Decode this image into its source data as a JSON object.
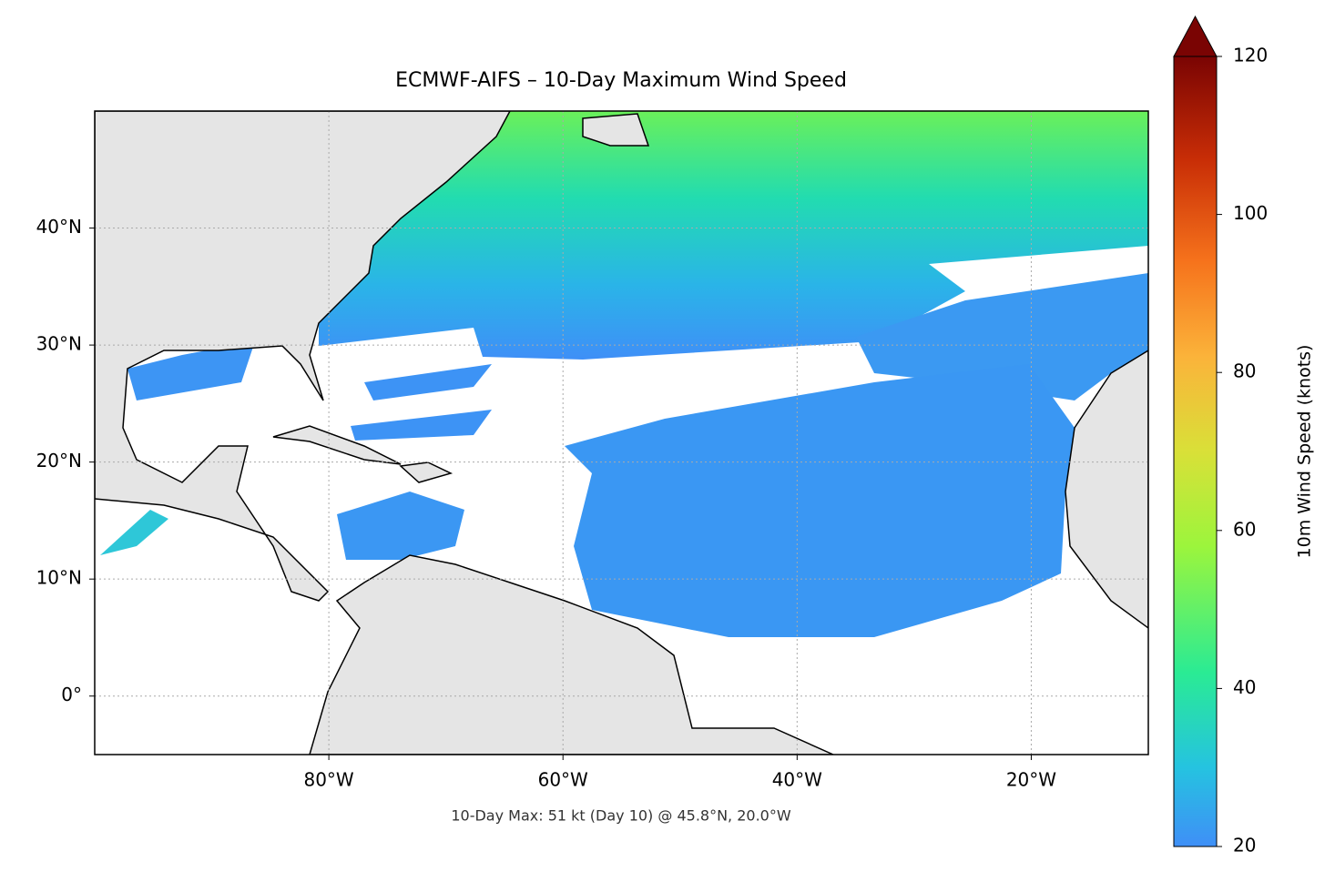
{
  "chart_data": {
    "type": "map",
    "title": "ECMWF-AIFS – 10-Day Maximum Wind Speed",
    "annotation": "10-Day Max: 51 kt (Day 10) @ 45.8°N, 20.0°W",
    "xlim": [
      -100,
      -10
    ],
    "ylim": [
      -5,
      50
    ],
    "xticks": [
      {
        "value": -80,
        "label": "80°W"
      },
      {
        "value": -60,
        "label": "60°W"
      },
      {
        "value": -40,
        "label": "40°W"
      },
      {
        "value": -20,
        "label": "20°W"
      }
    ],
    "yticks": [
      {
        "value": 0,
        "label": "0°"
      },
      {
        "value": 10,
        "label": "10°N"
      },
      {
        "value": 20,
        "label": "20°N"
      },
      {
        "value": 30,
        "label": "30°N"
      },
      {
        "value": 40,
        "label": "40°N"
      }
    ],
    "grid": true,
    "colorbar": {
      "label": "10m Wind Speed (knots)",
      "lim": [
        20,
        120
      ],
      "ticks": [
        20,
        40,
        60,
        80,
        100,
        120
      ]
    }
  }
}
